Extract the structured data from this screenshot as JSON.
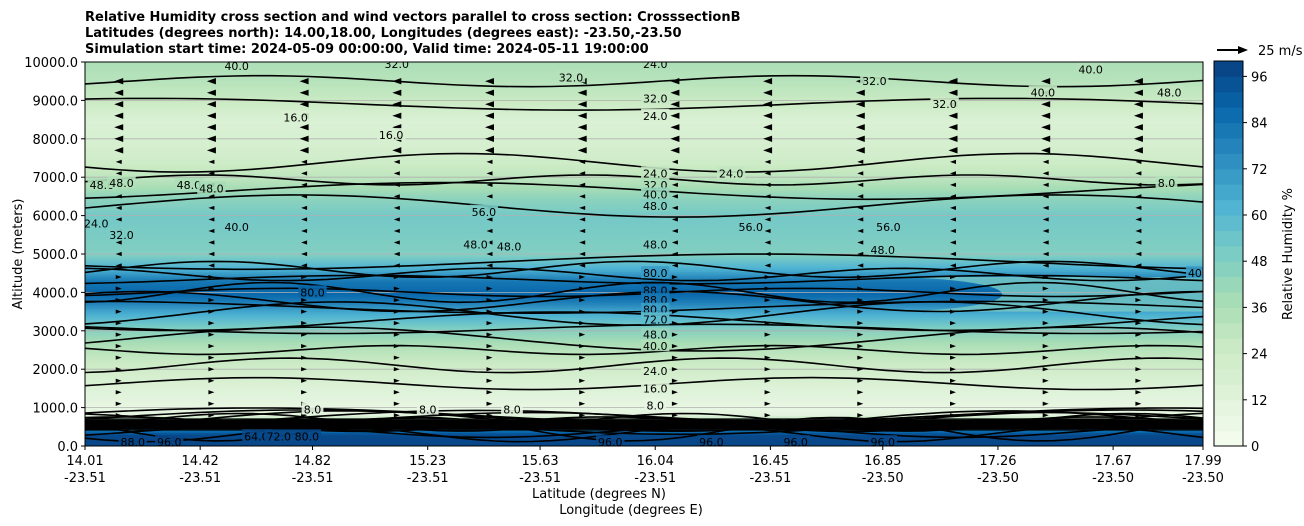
{
  "chart_data": {
    "type": "heatmap",
    "title_lines": [
      "Relative Humidity cross section and wind vectors parallel to cross section: CrosssectionB",
      "Latitudes (degrees north): 14.00,18.00, Longitudes (degrees east): -23.50,-23.50",
      "Simulation start time: 2024-05-09 00:00:00, Valid time: 2024-05-11 19:00:00"
    ],
    "ylabel": "Altitude (meters)",
    "xlabel_lines": [
      "Latitude (degrees N)",
      "Longitude (degrees E)"
    ],
    "ylim": [
      0,
      10000
    ],
    "y_ticks": [
      "0.0",
      "1000.0",
      "2000.0",
      "3000.0",
      "4000.0",
      "5000.0",
      "6000.0",
      "7000.0",
      "8000.0",
      "9000.0",
      "10000.0"
    ],
    "x_ticks": [
      {
        "lat": "14.01",
        "lon": "-23.51"
      },
      {
        "lat": "14.42",
        "lon": "-23.51"
      },
      {
        "lat": "14.82",
        "lon": "-23.51"
      },
      {
        "lat": "15.23",
        "lon": "-23.51"
      },
      {
        "lat": "15.63",
        "lon": "-23.51"
      },
      {
        "lat": "16.04",
        "lon": "-23.51"
      },
      {
        "lat": "16.45",
        "lon": "-23.51"
      },
      {
        "lat": "16.85",
        "lon": "-23.50"
      },
      {
        "lat": "17.26",
        "lon": "-23.50"
      },
      {
        "lat": "17.67",
        "lon": "-23.50"
      },
      {
        "lat": "17.99",
        "lon": "-23.50"
      }
    ],
    "grid": true,
    "colorbar": {
      "label": "Relative Humidity %",
      "ticks": [
        "0",
        "12",
        "24",
        "36",
        "48",
        "60",
        "72",
        "84",
        "96"
      ],
      "range": [
        0,
        100
      ],
      "colormap": "GnBu",
      "colors": [
        "#f7fcf0",
        "#e0f3db",
        "#ccebc5",
        "#a8ddb5",
        "#7bccc4",
        "#4eb3d3",
        "#2b8cbe",
        "#0868ac",
        "#084081"
      ]
    },
    "vector_key": "25 m/s",
    "profile": {
      "altitude_m": [
        0,
        300,
        600,
        800,
        1000,
        1500,
        2000,
        2500,
        3000,
        3500,
        3800,
        4000,
        4300,
        4600,
        5000,
        5500,
        6000,
        6500,
        7000,
        7500,
        8000,
        8500,
        9000,
        9500,
        10000
      ],
      "rh_percent": [
        98,
        97,
        60,
        12,
        8,
        14,
        22,
        32,
        46,
        66,
        82,
        88,
        82,
        64,
        48,
        50,
        52,
        44,
        30,
        22,
        18,
        16,
        26,
        32,
        36
      ]
    },
    "contour_labels": [
      {
        "text": "40.0",
        "alt": 9900,
        "lat": 14.55
      },
      {
        "text": "32.0",
        "alt": 9950,
        "lat": 15.12
      },
      {
        "text": "24.0",
        "alt": 9950,
        "lat": 16.04
      },
      {
        "text": "32.0",
        "alt": 9600,
        "lat": 15.74
      },
      {
        "text": "32.0",
        "alt": 9500,
        "lat": 16.82
      },
      {
        "text": "32.0",
        "alt": 9050,
        "lat": 16.04
      },
      {
        "text": "32.0",
        "alt": 8900,
        "lat": 17.07
      },
      {
        "text": "40.0",
        "alt": 9200,
        "lat": 17.42
      },
      {
        "text": "40.0",
        "alt": 9800,
        "lat": 17.59
      },
      {
        "text": "48.0",
        "alt": 9200,
        "lat": 17.87
      },
      {
        "text": "16.0",
        "alt": 8550,
        "lat": 14.76
      },
      {
        "text": "16.0",
        "alt": 8100,
        "lat": 15.1
      },
      {
        "text": "24.0",
        "alt": 8600,
        "lat": 16.04
      },
      {
        "text": "24.0",
        "alt": 7100,
        "lat": 16.04
      },
      {
        "text": "24.0",
        "alt": 7100,
        "lat": 16.31
      },
      {
        "text": "32.0",
        "alt": 6800,
        "lat": 16.04
      },
      {
        "text": "40.0",
        "alt": 6550,
        "lat": 16.04
      },
      {
        "text": "48.0",
        "alt": 6250,
        "lat": 16.04
      },
      {
        "text": "8.0",
        "alt": 6850,
        "lat": 17.86
      },
      {
        "text": "48.0",
        "alt": 6800,
        "lat": 14.07
      },
      {
        "text": "48.0",
        "alt": 6850,
        "lat": 14.14
      },
      {
        "text": "48.0",
        "alt": 6800,
        "lat": 14.38
      },
      {
        "text": "48.0",
        "alt": 6700,
        "lat": 14.46
      },
      {
        "text": "24.0",
        "alt": 5800,
        "lat": 14.05
      },
      {
        "text": "32.0",
        "alt": 5500,
        "lat": 14.14
      },
      {
        "text": "40.0",
        "alt": 5700,
        "lat": 14.55
      },
      {
        "text": "56.0",
        "alt": 6100,
        "lat": 15.43
      },
      {
        "text": "56.0",
        "alt": 5700,
        "lat": 16.38
      },
      {
        "text": "56.0",
        "alt": 5700,
        "lat": 16.87
      },
      {
        "text": "48.0",
        "alt": 5250,
        "lat": 15.4
      },
      {
        "text": "48.0",
        "alt": 5200,
        "lat": 15.52
      },
      {
        "text": "48.0",
        "alt": 5250,
        "lat": 16.04
      },
      {
        "text": "48.0",
        "alt": 5100,
        "lat": 16.85
      },
      {
        "text": "40.0",
        "alt": 4500,
        "lat": 17.98
      },
      {
        "text": "80.0",
        "alt": 4500,
        "lat": 16.04
      },
      {
        "text": "80.0",
        "alt": 4000,
        "lat": 14.82
      },
      {
        "text": "88.0",
        "alt": 4050,
        "lat": 16.04
      },
      {
        "text": "88.0",
        "alt": 3800,
        "lat": 16.04
      },
      {
        "text": "80.0",
        "alt": 3550,
        "lat": 16.04
      },
      {
        "text": "72.0",
        "alt": 3300,
        "lat": 16.04
      },
      {
        "text": "48.0",
        "alt": 2900,
        "lat": 16.04
      },
      {
        "text": "40.0",
        "alt": 2600,
        "lat": 16.04
      },
      {
        "text": "24.0",
        "alt": 1950,
        "lat": 16.04
      },
      {
        "text": "16.0",
        "alt": 1500,
        "lat": 16.04
      },
      {
        "text": "8.0",
        "alt": 1050,
        "lat": 16.04
      },
      {
        "text": "8.0",
        "alt": 950,
        "lat": 14.82
      },
      {
        "text": "8.0",
        "alt": 950,
        "lat": 15.23
      },
      {
        "text": "8.0",
        "alt": 950,
        "lat": 15.53
      },
      {
        "text": "96.0",
        "alt": 100,
        "lat": 14.31
      },
      {
        "text": "96.0",
        "alt": 100,
        "lat": 15.88
      },
      {
        "text": "96.0",
        "alt": 100,
        "lat": 16.24
      },
      {
        "text": "96.0",
        "alt": 100,
        "lat": 16.54
      },
      {
        "text": "96.0",
        "alt": 100,
        "lat": 16.85
      },
      {
        "text": "88.0",
        "alt": 100,
        "lat": 14.18
      },
      {
        "text": "80.0",
        "alt": 250,
        "lat": 14.8
      },
      {
        "text": "64.0",
        "alt": 250,
        "lat": 14.62
      },
      {
        "text": "72.0",
        "alt": 250,
        "lat": 14.7
      }
    ]
  }
}
